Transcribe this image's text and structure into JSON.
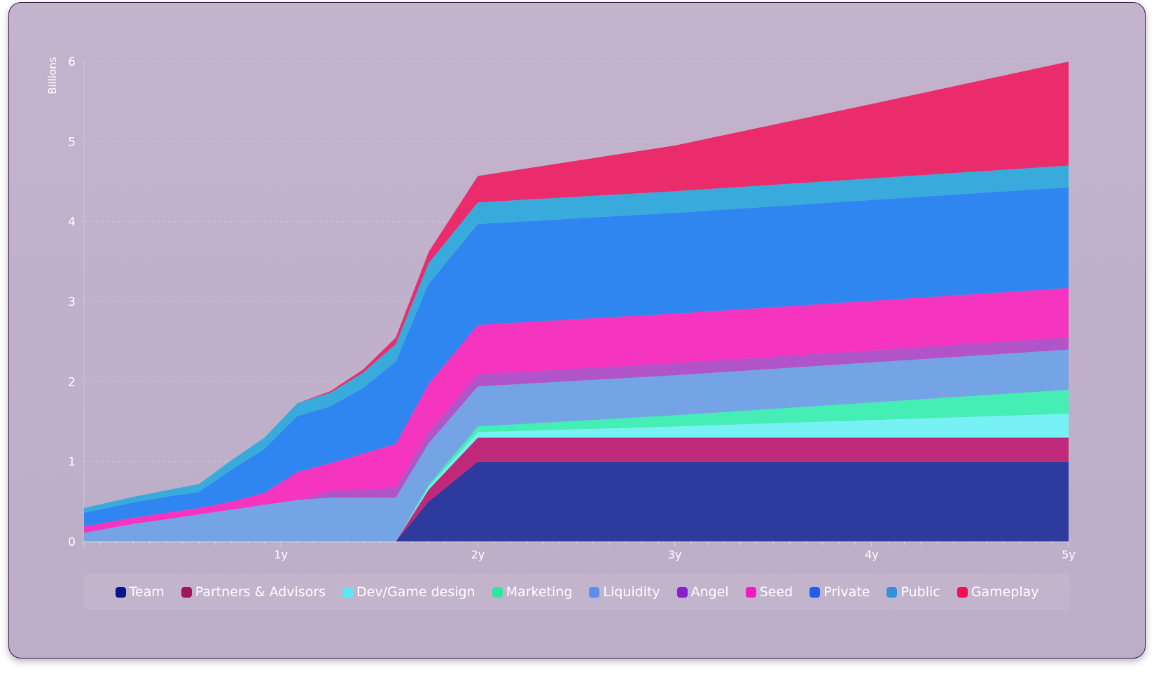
{
  "chart_data": {
    "type": "area",
    "stacked": true,
    "ylabel": "Billions",
    "ylim": [
      0,
      6
    ],
    "yticks": [
      "0",
      "1",
      "2",
      "3",
      "4",
      "5",
      "6"
    ],
    "xticks": [
      {
        "label": "1y",
        "value": 12
      },
      {
        "label": "2y",
        "value": 24
      },
      {
        "label": "3y",
        "value": 36
      },
      {
        "label": "4y",
        "value": 48
      },
      {
        "label": "5y",
        "value": 60
      }
    ],
    "xlim": [
      0,
      60
    ],
    "x": [
      0,
      3,
      5,
      7,
      9,
      11,
      13,
      15,
      17,
      19,
      21,
      24,
      36,
      48,
      60
    ],
    "legend_position": "bottom",
    "grid": true,
    "series": [
      {
        "name": "Team",
        "color": "#0a1688",
        "fill": "#2d3a9e",
        "values": [
          0,
          0,
          0,
          0,
          0,
          0,
          0,
          0,
          0,
          0,
          0.5,
          1.0,
          1.0,
          1.0,
          1.0
        ]
      },
      {
        "name": "Partners & Advisors",
        "color": "#a3145f",
        "fill": "#c0287a",
        "values": [
          0,
          0,
          0,
          0,
          0,
          0,
          0,
          0,
          0,
          0,
          0.15,
          0.3,
          0.3,
          0.3,
          0.3
        ]
      },
      {
        "name": "Dev/Game design",
        "color": "#5ce8f0",
        "fill": "#76f2f4",
        "values": [
          0,
          0,
          0,
          0,
          0,
          0,
          0,
          0,
          0,
          0,
          0.03,
          0.07,
          0.14,
          0.22,
          0.3
        ]
      },
      {
        "name": "Marketing",
        "color": "#2ee6a0",
        "fill": "#44eeb4",
        "values": [
          0,
          0,
          0,
          0,
          0,
          0,
          0,
          0,
          0,
          0,
          0.03,
          0.07,
          0.14,
          0.22,
          0.3
        ]
      },
      {
        "name": "Liquidity",
        "color": "#5b8ef0",
        "fill": "#74a4e6",
        "values": [
          0.11,
          0.22,
          0.28,
          0.34,
          0.4,
          0.46,
          0.52,
          0.55,
          0.55,
          0.55,
          0.52,
          0.5,
          0.5,
          0.5,
          0.5
        ]
      },
      {
        "name": "Angel",
        "color": "#8a1ec9",
        "fill": "#b154c9",
        "values": [
          0,
          0,
          0,
          0,
          0,
          0,
          0,
          0.08,
          0.1,
          0.12,
          0.14,
          0.15,
          0.15,
          0.15,
          0.15
        ]
      },
      {
        "name": "Seed",
        "color": "#f01cc0",
        "fill": "#f534c0",
        "values": [
          0.08,
          0.08,
          0.08,
          0.08,
          0.1,
          0.15,
          0.35,
          0.35,
          0.45,
          0.55,
          0.6,
          0.62,
          0.62,
          0.62,
          0.62
        ]
      },
      {
        "name": "Private",
        "color": "#1f5ff0",
        "fill": "#2f86f1",
        "values": [
          0.17,
          0.19,
          0.2,
          0.2,
          0.4,
          0.55,
          0.7,
          0.71,
          0.82,
          1.03,
          1.25,
          1.26,
          1.26,
          1.26,
          1.26
        ]
      },
      {
        "name": "Public",
        "color": "#2f94d9",
        "fill": "#38abdc",
        "values": [
          0.06,
          0.07,
          0.08,
          0.1,
          0.12,
          0.14,
          0.16,
          0.17,
          0.19,
          0.22,
          0.26,
          0.27,
          0.27,
          0.27,
          0.27
        ]
      },
      {
        "name": "Gameplay",
        "color": "#f01050",
        "fill": "#ea2c6c",
        "values": [
          0,
          0,
          0,
          0,
          0,
          0,
          0,
          0.02,
          0.04,
          0.08,
          0.14,
          0.33,
          0.57,
          0.93,
          1.3
        ]
      }
    ]
  }
}
